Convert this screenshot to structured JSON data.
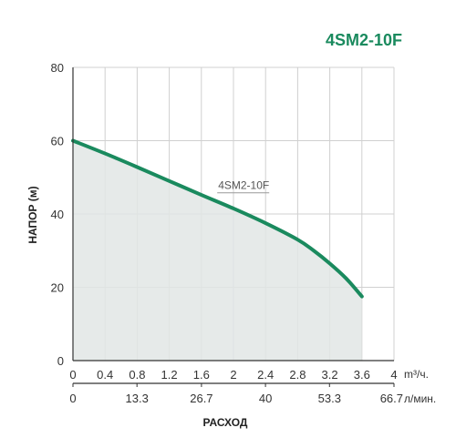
{
  "chart_data": {
    "type": "area",
    "title": "4SM2-10F",
    "xlabel": "РАСХОД",
    "ylabel": "НАПОР (м)",
    "x_unit": "m³/ч.",
    "x2_unit": "л/мин.",
    "xlim": [
      0,
      4
    ],
    "ylim": [
      0,
      80
    ],
    "x_ticks": [
      "0",
      "0.4",
      "0.8",
      "1.2",
      "1.6",
      "2",
      "2.4",
      "2.8",
      "3.2",
      "3.6",
      "4"
    ],
    "x_tick_values": [
      0,
      0.4,
      0.8,
      1.2,
      1.6,
      2,
      2.4,
      2.8,
      3.2,
      3.6,
      4
    ],
    "x2_ticks": [
      "0",
      "13.3",
      "26.7",
      "40",
      "53.3",
      "66.7"
    ],
    "x2_tick_values": [
      0,
      13.3,
      26.7,
      40,
      53.3,
      66.7
    ],
    "x2_lim": [
      0,
      66.7
    ],
    "y_ticks": [
      "0",
      "20",
      "40",
      "60",
      "80"
    ],
    "y_tick_values": [
      0,
      20,
      40,
      60,
      80
    ],
    "grid": true,
    "series": [
      {
        "name": "4SM2-10F",
        "x": [
          0,
          0.4,
          0.8,
          1.2,
          1.6,
          2.0,
          2.4,
          2.8,
          3.0,
          3.2,
          3.4,
          3.6
        ],
        "y": [
          60,
          56.5,
          52.8,
          49,
          45.2,
          41.5,
          37.5,
          33,
          30,
          26.5,
          22.5,
          17.5
        ]
      }
    ],
    "colors": {
      "line": "#1a8a5e",
      "fill": "#e2e6e5",
      "title": "#1a8a5e"
    }
  }
}
